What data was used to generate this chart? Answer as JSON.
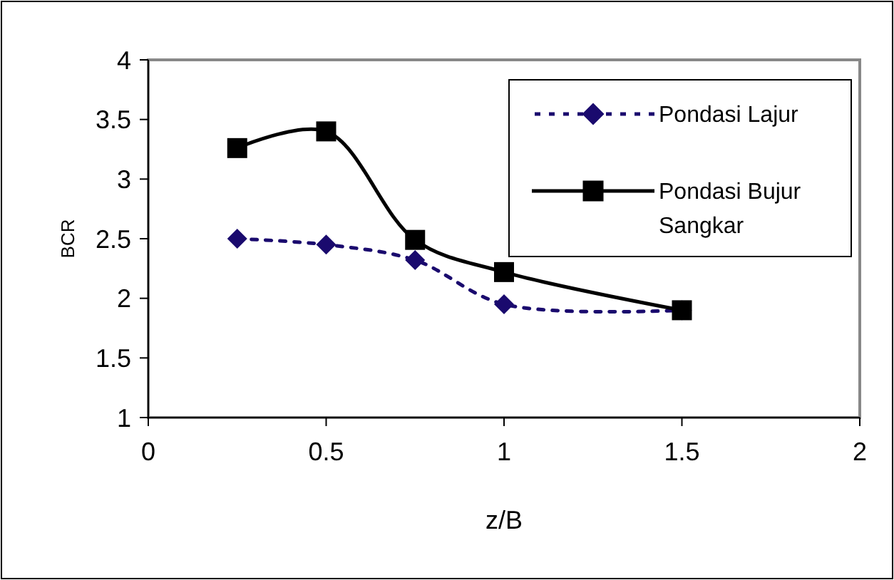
{
  "chart_data": {
    "type": "line",
    "xlabel": "z/B",
    "ylabel": "BCR",
    "xlim": [
      0,
      2
    ],
    "xticks": [
      0,
      0.5,
      1,
      1.5,
      2
    ],
    "ylim": [
      1,
      4
    ],
    "yticks": [
      1,
      1.5,
      2,
      2.5,
      3,
      3.5,
      4
    ],
    "grid": false,
    "legend": "top right",
    "series": [
      {
        "name": "Pondasi Lajur",
        "color": "#1a0a6e",
        "x": [
          0.25,
          0.5,
          0.75,
          1,
          1.5
        ],
        "values": [
          2.5,
          2.45,
          2.32,
          1.95,
          1.9
        ],
        "marker": "diamond",
        "line_style": "dotted"
      },
      {
        "name": "Pondasi Bujur Sangkar",
        "color": "#000000",
        "x": [
          0.25,
          0.5,
          0.75,
          1,
          1.5
        ],
        "values": [
          3.26,
          3.4,
          2.49,
          2.22,
          1.9
        ],
        "marker": "square",
        "line_style": "solid"
      }
    ]
  }
}
